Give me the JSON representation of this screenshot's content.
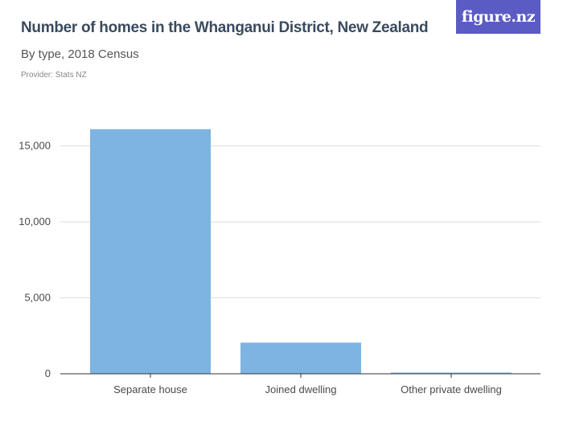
{
  "header": {
    "title": "Number of homes in the Whanganui District, New Zealand",
    "subtitle": "By type, 2018 Census",
    "provider": "Provider: Stats NZ",
    "brand": "figure.nz"
  },
  "colors": {
    "bar": "#7eb4e2",
    "brand_bg": "#5b5bc4",
    "grid": "#dddddd",
    "axis": "#333333"
  },
  "chart_data": {
    "type": "bar",
    "title": "Number of homes in the Whanganui District, New Zealand",
    "subtitle": "By type, 2018 Census",
    "xlabel": "",
    "ylabel": "",
    "categories": [
      "Separate house",
      "Joined dwelling",
      "Other private dwelling"
    ],
    "values": [
      16100,
      2050,
      50
    ],
    "ylim": [
      0,
      17000
    ],
    "yticks": [
      0,
      5000,
      10000,
      15000
    ],
    "ytick_labels": [
      "0",
      "5,000",
      "10,000",
      "15,000"
    ],
    "grid": true,
    "legend": "none"
  }
}
